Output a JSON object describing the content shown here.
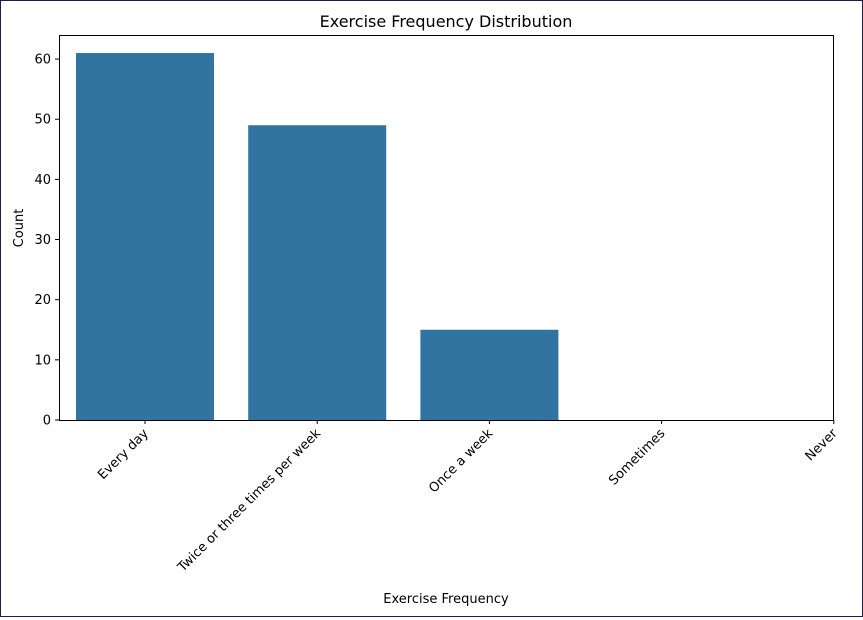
{
  "chart_data": {
    "type": "bar",
    "title": "Exercise Frequency Distribution",
    "xlabel": "Exercise Frequency",
    "ylabel": "Count",
    "categories": [
      "Every day",
      "Twice or three times per week",
      "Once a week",
      "Sometimes",
      "Never"
    ],
    "values": [
      61,
      49,
      15,
      0,
      0
    ],
    "ylim": [
      0,
      64
    ],
    "yticks": [
      "0",
      "10",
      "20",
      "30",
      "40",
      "50",
      "60"
    ],
    "bar_color": "#3274a1",
    "grid": false,
    "legend": "none"
  }
}
